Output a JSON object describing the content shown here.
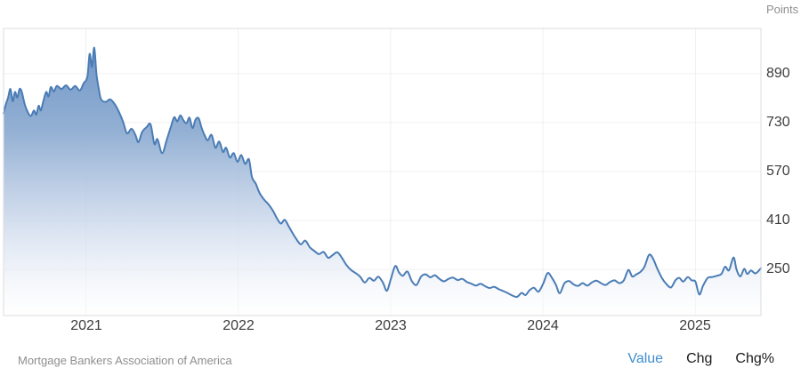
{
  "units_label": "Points",
  "source": "Mortgage Bankers Association of America",
  "tabs": [
    {
      "label": "Value",
      "active": true
    },
    {
      "label": "Chg",
      "active": false
    },
    {
      "label": "Chg%",
      "active": false
    }
  ],
  "colors": {
    "line": "#4a7cb5",
    "fill_top": "#6b92c4",
    "fill_mid1": "#8fadd2",
    "fill_mid2": "#c6d4e9",
    "fill_bottom": "#ffffff",
    "grid": "#f0f0f0",
    "frame": "#dcdcdc",
    "tick_text": "#3c3c3c",
    "muted_text": "#8e8e8e",
    "active_tab": "#3e8ed0"
  },
  "chart_data": {
    "type": "area",
    "title": "",
    "ylabel": "Points",
    "xlabel": "",
    "grid": true,
    "legend": false,
    "y_axis_side": "right",
    "y_ticks": [
      890,
      730,
      570,
      410,
      250
    ],
    "x_ticks": [
      2021,
      2022,
      2023,
      2024,
      2025
    ],
    "xlim": [
      2020.46,
      2025.43
    ],
    "ylim": [
      99,
      1038
    ],
    "series": [
      {
        "name": "index_points",
        "points": [
          [
            2020.46,
            760
          ],
          [
            2020.475,
            790
          ],
          [
            2020.49,
            812
          ],
          [
            2020.505,
            840
          ],
          [
            2020.52,
            800
          ],
          [
            2020.535,
            830
          ],
          [
            2020.55,
            812
          ],
          [
            2020.565,
            840
          ],
          [
            2020.58,
            830
          ],
          [
            2020.6,
            788
          ],
          [
            2020.62,
            763
          ],
          [
            2020.64,
            752
          ],
          [
            2020.66,
            770
          ],
          [
            2020.675,
            756
          ],
          [
            2020.69,
            785
          ],
          [
            2020.705,
            770
          ],
          [
            2020.72,
            798
          ],
          [
            2020.74,
            830
          ],
          [
            2020.755,
            815
          ],
          [
            2020.77,
            846
          ],
          [
            2020.79,
            832
          ],
          [
            2020.81,
            850
          ],
          [
            2020.84,
            840
          ],
          [
            2020.87,
            852
          ],
          [
            2020.9,
            838
          ],
          [
            2020.93,
            850
          ],
          [
            2020.96,
            835
          ],
          [
            2020.985,
            858
          ],
          [
            2021.01,
            880
          ],
          [
            2021.025,
            955
          ],
          [
            2021.04,
            912
          ],
          [
            2021.055,
            975
          ],
          [
            2021.07,
            888
          ],
          [
            2021.085,
            840
          ],
          [
            2021.1,
            806
          ],
          [
            2021.13,
            798
          ],
          [
            2021.16,
            806
          ],
          [
            2021.19,
            790
          ],
          [
            2021.22,
            762
          ],
          [
            2021.245,
            732
          ],
          [
            2021.27,
            695
          ],
          [
            2021.3,
            710
          ],
          [
            2021.325,
            690
          ],
          [
            2021.345,
            666
          ],
          [
            2021.37,
            700
          ],
          [
            2021.4,
            716
          ],
          [
            2021.425,
            724
          ],
          [
            2021.45,
            660
          ],
          [
            2021.47,
            676
          ],
          [
            2021.5,
            630
          ],
          [
            2021.53,
            672
          ],
          [
            2021.56,
            720
          ],
          [
            2021.58,
            748
          ],
          [
            2021.6,
            734
          ],
          [
            2021.62,
            754
          ],
          [
            2021.64,
            738
          ],
          [
            2021.66,
            728
          ],
          [
            2021.68,
            746
          ],
          [
            2021.7,
            712
          ],
          [
            2021.72,
            740
          ],
          [
            2021.74,
            744
          ],
          [
            2021.76,
            712
          ],
          [
            2021.78,
            688
          ],
          [
            2021.8,
            672
          ],
          [
            2021.825,
            690
          ],
          [
            2021.85,
            648
          ],
          [
            2021.875,
            668
          ],
          [
            2021.9,
            634
          ],
          [
            2021.92,
            648
          ],
          [
            2021.945,
            616
          ],
          [
            2021.97,
            630
          ],
          [
            2021.995,
            602
          ],
          [
            2022.02,
            624
          ],
          [
            2022.045,
            595
          ],
          [
            2022.07,
            610
          ],
          [
            2022.09,
            552
          ],
          [
            2022.115,
            530
          ],
          [
            2022.14,
            500
          ],
          [
            2022.17,
            478
          ],
          [
            2022.2,
            462
          ],
          [
            2022.23,
            440
          ],
          [
            2022.255,
            416
          ],
          [
            2022.28,
            400
          ],
          [
            2022.305,
            412
          ],
          [
            2022.33,
            392
          ],
          [
            2022.355,
            370
          ],
          [
            2022.38,
            350
          ],
          [
            2022.41,
            332
          ],
          [
            2022.44,
            344
          ],
          [
            2022.47,
            322
          ],
          [
            2022.5,
            310
          ],
          [
            2022.53,
            300
          ],
          [
            2022.56,
            307
          ],
          [
            2022.59,
            288
          ],
          [
            2022.62,
            297
          ],
          [
            2022.65,
            306
          ],
          [
            2022.68,
            288
          ],
          [
            2022.71,
            264
          ],
          [
            2022.74,
            248
          ],
          [
            2022.77,
            238
          ],
          [
            2022.8,
            226
          ],
          [
            2022.83,
            207
          ],
          [
            2022.86,
            222
          ],
          [
            2022.89,
            213
          ],
          [
            2022.92,
            226
          ],
          [
            2022.95,
            206
          ],
          [
            2022.975,
            180
          ],
          [
            2023.0,
            216
          ],
          [
            2023.03,
            261
          ],
          [
            2023.055,
            240
          ],
          [
            2023.08,
            229
          ],
          [
            2023.11,
            243
          ],
          [
            2023.14,
            211
          ],
          [
            2023.17,
            199
          ],
          [
            2023.2,
            227
          ],
          [
            2023.23,
            234
          ],
          [
            2023.26,
            224
          ],
          [
            2023.29,
            231
          ],
          [
            2023.32,
            219
          ],
          [
            2023.35,
            211
          ],
          [
            2023.38,
            219
          ],
          [
            2023.41,
            223
          ],
          [
            2023.44,
            215
          ],
          [
            2023.47,
            219
          ],
          [
            2023.5,
            209
          ],
          [
            2023.53,
            203
          ],
          [
            2023.56,
            197
          ],
          [
            2023.59,
            203
          ],
          [
            2023.62,
            195
          ],
          [
            2023.65,
            189
          ],
          [
            2023.68,
            193
          ],
          [
            2023.71,
            185
          ],
          [
            2023.74,
            179
          ],
          [
            2023.77,
            172
          ],
          [
            2023.8,
            164
          ],
          [
            2023.83,
            160
          ],
          [
            2023.86,
            173
          ],
          [
            2023.885,
            166
          ],
          [
            2023.91,
            181
          ],
          [
            2023.94,
            190
          ],
          [
            2023.97,
            177
          ],
          [
            2024.0,
            202
          ],
          [
            2024.03,
            238
          ],
          [
            2024.06,
            221
          ],
          [
            2024.085,
            199
          ],
          [
            2024.11,
            172
          ],
          [
            2024.14,
            204
          ],
          [
            2024.17,
            212
          ],
          [
            2024.2,
            201
          ],
          [
            2024.23,
            196
          ],
          [
            2024.26,
            205
          ],
          [
            2024.29,
            197
          ],
          [
            2024.32,
            207
          ],
          [
            2024.35,
            213
          ],
          [
            2024.38,
            205
          ],
          [
            2024.41,
            199
          ],
          [
            2024.44,
            209
          ],
          [
            2024.47,
            214
          ],
          [
            2024.5,
            205
          ],
          [
            2024.53,
            214
          ],
          [
            2024.56,
            248
          ],
          [
            2024.585,
            227
          ],
          [
            2024.61,
            233
          ],
          [
            2024.64,
            242
          ],
          [
            2024.665,
            258
          ],
          [
            2024.695,
            297
          ],
          [
            2024.72,
            287
          ],
          [
            2024.75,
            252
          ],
          [
            2024.78,
            222
          ],
          [
            2024.81,
            202
          ],
          [
            2024.84,
            191
          ],
          [
            2024.87,
            215
          ],
          [
            2024.895,
            222
          ],
          [
            2024.92,
            210
          ],
          [
            2024.95,
            225
          ],
          [
            2024.975,
            214
          ],
          [
            2025.0,
            210
          ],
          [
            2025.025,
            168
          ],
          [
            2025.05,
            196
          ],
          [
            2025.08,
            222
          ],
          [
            2025.11,
            225
          ],
          [
            2025.14,
            229
          ],
          [
            2025.17,
            235
          ],
          [
            2025.195,
            259
          ],
          [
            2025.22,
            247
          ],
          [
            2025.25,
            289
          ],
          [
            2025.27,
            249
          ],
          [
            2025.295,
            227
          ],
          [
            2025.32,
            252
          ],
          [
            2025.34,
            235
          ],
          [
            2025.365,
            246
          ],
          [
            2025.395,
            237
          ],
          [
            2025.43,
            254
          ]
        ]
      }
    ]
  }
}
